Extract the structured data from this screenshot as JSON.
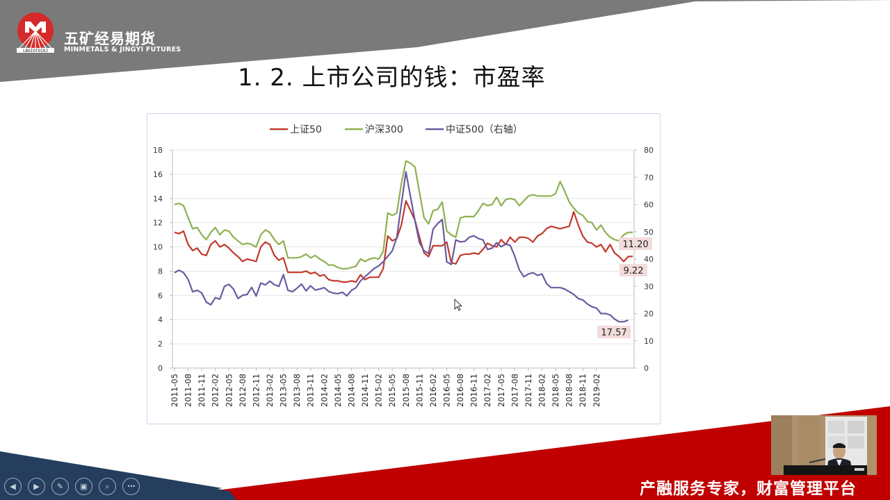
{
  "brand": {
    "name_cn": "五矿经易期货",
    "name_en": "MINMETALS & JINGYI FUTURES",
    "logo_ring_text": "MINMETALS",
    "colors": {
      "gray_band": "#7a7a7a",
      "navy_band": "#253e5e",
      "red_band": "#c00000",
      "logo_red": "#d42a2a"
    }
  },
  "slide": {
    "title": "1. 2. 上市公司的钱：市盈率",
    "slogan": "产融服务专家，财富管理平台"
  },
  "presentation_controls": [
    {
      "name": "previous-slide",
      "icon": "◀"
    },
    {
      "name": "next-slide",
      "icon": "▶"
    },
    {
      "name": "pen",
      "icon": "✎"
    },
    {
      "name": "slide-sorter",
      "icon": "▣"
    },
    {
      "name": "zoom",
      "icon": "⌕"
    },
    {
      "name": "more-options",
      "icon": "•••"
    }
  ],
  "chart_data": {
    "type": "line",
    "title": "",
    "xlabel": "",
    "ylabel": "",
    "ylim": [
      0,
      18
    ],
    "y2lim": [
      0,
      80
    ],
    "yticks": [
      0,
      2,
      4,
      6,
      8,
      10,
      12,
      14,
      16,
      18
    ],
    "y2ticks": [
      0,
      10,
      20,
      30,
      40,
      50,
      60,
      70,
      80
    ],
    "grid": true,
    "legend_position": "top",
    "x_tick_labels": [
      "2011-05",
      "2011-08",
      "2011-11",
      "2012-02",
      "2012-05",
      "2012-08",
      "2012-11",
      "2013-02",
      "2013-05",
      "2013-08",
      "2013-11",
      "2014-02",
      "2014-05",
      "2014-08",
      "2014-11",
      "2015-02",
      "2015-05",
      "2015-08",
      "2015-11",
      "2016-02",
      "2016-05",
      "2016-08",
      "2016-11",
      "2017-02",
      "2017-05",
      "2017-08",
      "2017-11",
      "2018-02",
      "2018-05",
      "2018-08",
      "2018-11",
      "2019-02"
    ],
    "x_start": "2011-05",
    "x_end": "2019-02",
    "frequency": "monthly",
    "series": [
      {
        "name": "上证50",
        "axis": "left",
        "color": "#c0392b",
        "end_label": "9.22",
        "values": [
          11.2,
          11.1,
          11.3,
          10.2,
          9.7,
          9.9,
          9.4,
          9.3,
          10.2,
          10.5,
          10.0,
          10.2,
          9.9,
          9.5,
          9.2,
          8.8,
          9.0,
          8.9,
          8.8,
          10.0,
          10.4,
          10.2,
          9.3,
          8.9,
          9.1,
          7.9,
          7.9,
          7.9,
          7.9,
          8.0,
          7.8,
          7.9,
          7.6,
          7.7,
          7.3,
          7.2,
          7.2,
          7.1,
          7.1,
          7.2,
          7.1,
          7.7,
          7.3,
          7.5,
          7.5,
          7.5,
          8.2,
          10.9,
          10.5,
          10.7,
          11.8,
          13.8,
          13.0,
          12.2,
          10.8,
          9.5,
          9.2,
          10.1,
          10.1,
          10.1,
          10.4,
          8.7,
          8.6,
          9.3,
          9.4,
          9.4,
          9.5,
          9.4,
          9.8,
          10.3,
          10.1,
          10.0,
          10.6,
          10.2,
          10.8,
          10.4,
          10.8,
          10.8,
          10.7,
          10.4,
          10.9,
          11.1,
          11.5,
          11.7,
          11.6,
          11.5,
          11.6,
          11.7,
          12.9,
          11.8,
          10.9,
          10.4,
          10.3,
          10.0,
          10.2,
          9.6,
          10.2,
          9.5,
          9.2,
          8.8,
          9.2,
          9.22
        ]
      },
      {
        "name": "沪深300",
        "axis": "left",
        "color": "#8db050",
        "end_label": "11.20",
        "values": [
          13.5,
          13.6,
          13.4,
          12.4,
          11.5,
          11.6,
          11.0,
          10.6,
          11.2,
          11.6,
          11.0,
          11.4,
          11.3,
          10.8,
          10.5,
          10.2,
          10.3,
          10.2,
          10.0,
          11.0,
          11.4,
          11.2,
          10.6,
          10.2,
          10.5,
          9.1,
          9.1,
          9.1,
          9.2,
          9.4,
          9.1,
          9.3,
          9.0,
          8.8,
          8.5,
          8.5,
          8.3,
          8.2,
          8.2,
          8.3,
          8.4,
          9.0,
          8.8,
          9.0,
          9.1,
          9.0,
          9.6,
          12.8,
          12.6,
          12.8,
          15.2,
          17.1,
          16.9,
          16.6,
          14.5,
          12.4,
          11.9,
          13.0,
          13.1,
          13.7,
          11.3,
          11.0,
          10.8,
          12.4,
          12.5,
          12.5,
          12.5,
          13.0,
          13.6,
          13.4,
          13.5,
          14.1,
          13.4,
          13.9,
          14.0,
          13.9,
          13.4,
          13.8,
          14.2,
          14.3,
          14.2,
          14.2,
          14.2,
          14.2,
          14.4,
          15.4,
          14.6,
          13.7,
          13.2,
          12.8,
          12.6,
          12.1,
          12.0,
          11.4,
          11.8,
          11.2,
          10.8,
          10.6,
          10.5,
          11.0,
          11.2,
          11.2
        ]
      },
      {
        "name": "中证500（右轴）",
        "axis": "right",
        "color": "#6a5aa0",
        "end_label": "17.57",
        "values": [
          35.0,
          35.9,
          35.0,
          32.5,
          28.0,
          28.5,
          27.6,
          24.2,
          23.2,
          25.8,
          25.3,
          30.0,
          30.7,
          29.0,
          25.5,
          26.7,
          27.0,
          29.6,
          26.4,
          31.2,
          30.5,
          31.9,
          30.6,
          30.0,
          34.3,
          28.5,
          28.0,
          29.3,
          30.8,
          28.3,
          30.2,
          28.6,
          29.0,
          29.5,
          28.1,
          27.5,
          27.3,
          27.8,
          26.5,
          28.5,
          29.5,
          32.0,
          33.5,
          35.0,
          36.5,
          37.5,
          39.0,
          41.0,
          43.0,
          48.0,
          60.0,
          72.0,
          63.0,
          54.0,
          46.0,
          43.0,
          42.0,
          51.0,
          53.0,
          54.5,
          39.0,
          38.0,
          47.0,
          46.3,
          46.5,
          48.0,
          48.5,
          47.5,
          47.0,
          43.5,
          44.0,
          46.0,
          44.5,
          45.5,
          45.0,
          41.0,
          36.0,
          33.5,
          34.5,
          35.0,
          34.0,
          34.5,
          31.0,
          29.5,
          29.5,
          29.5,
          29.0,
          28.0,
          27.0,
          25.5,
          25.0,
          23.5,
          22.5,
          22.0,
          20.0,
          20.0,
          19.5,
          18.0,
          17.0,
          17.0,
          17.57
        ]
      }
    ]
  }
}
